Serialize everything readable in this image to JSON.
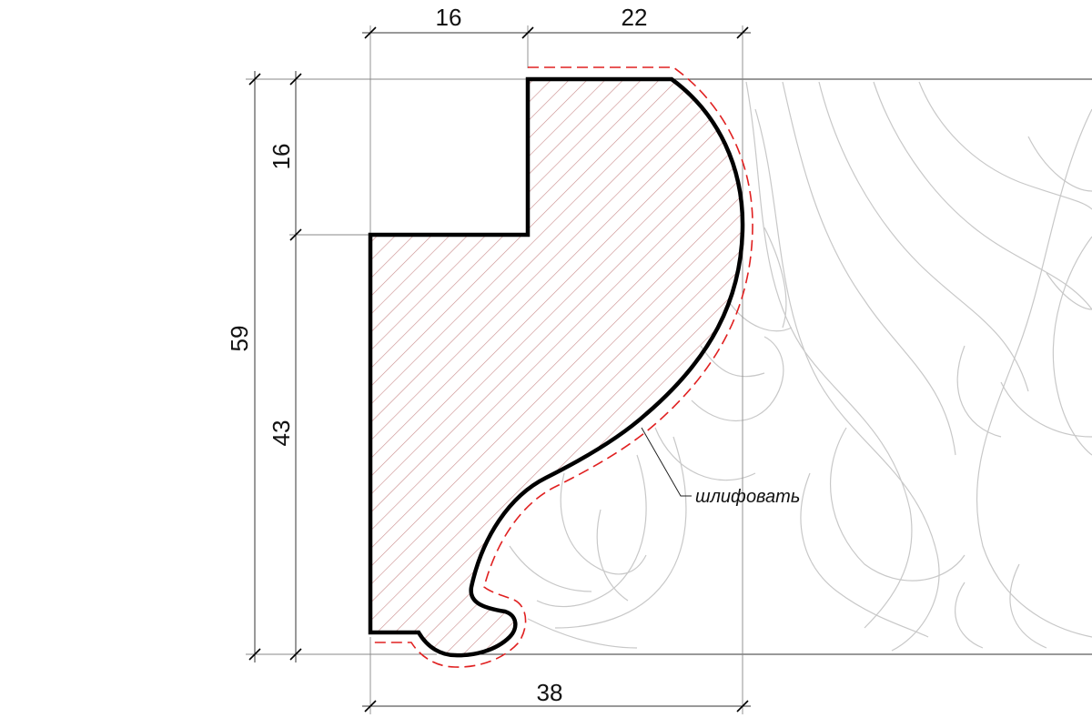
{
  "dimensions": {
    "top_left_width": "16",
    "top_right_width": "22",
    "bottom_width": "38",
    "total_height": "59",
    "upper_height": "16",
    "lower_height": "43"
  },
  "annotations": {
    "sanding_note": "шлифовать"
  },
  "colors": {
    "profile_outline": "#000000",
    "hatch": "#c98a8a",
    "sanding_line": "#e02020",
    "dimension_line": "#555555",
    "ornament": "#c8c8c8"
  }
}
